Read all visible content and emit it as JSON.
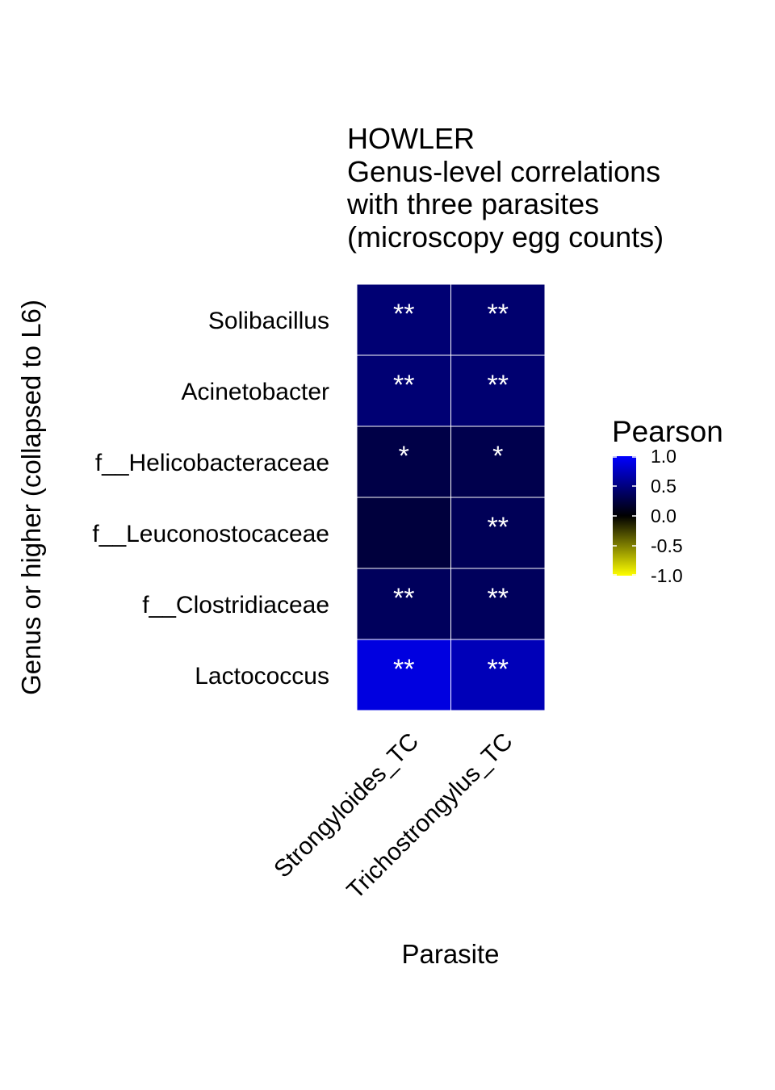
{
  "chart_data": {
    "type": "heatmap",
    "title_lines": [
      "HOWLER",
      "Genus-level correlations",
      "with three parasites",
      "(microscopy egg counts)"
    ],
    "xlabel": "Parasite",
    "ylabel": "Genus or higher (collapsed to L6)",
    "x_categories": [
      "Strongyloides_TC",
      "Trichostrongylus_TC"
    ],
    "y_categories": [
      "Solibacillus",
      "Acinetobacter",
      "f__Helicobacteraceae",
      "f__Leuconostocaceae",
      "f__Clostridiaceae",
      "Lactococcus"
    ],
    "values": [
      [
        0.45,
        0.43
      ],
      [
        0.45,
        0.44
      ],
      [
        0.28,
        0.3
      ],
      [
        0.24,
        0.34
      ],
      [
        0.36,
        0.36
      ],
      [
        0.88,
        0.72
      ]
    ],
    "significance": [
      [
        "**",
        "**"
      ],
      [
        "**",
        "**"
      ],
      [
        "*",
        "*"
      ],
      [
        "",
        "**"
      ],
      [
        "**",
        "**"
      ],
      [
        "**",
        "**"
      ]
    ],
    "legend": {
      "title": "Pearson",
      "ticks": [
        "1.0",
        "0.5",
        "0.0",
        "-0.5",
        "-1.0"
      ],
      "tick_values": [
        1.0,
        0.5,
        0.0,
        -0.5,
        -1.0
      ],
      "range": [
        -1,
        1
      ],
      "colors": {
        "low": "#ffff00",
        "mid": "#000000",
        "high": "#0000ff"
      },
      "placement": "right"
    },
    "grid": false
  }
}
